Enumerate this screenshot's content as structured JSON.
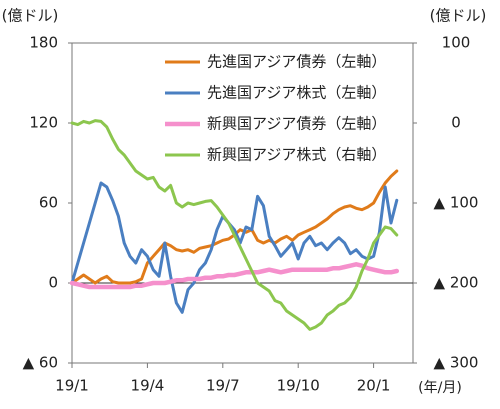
{
  "chart_data": {
    "type": "line",
    "y_label": "(億ドル)",
    "y2_label": "(億ドル)",
    "x_label": "(年/月)",
    "categories": [
      "19/1",
      null,
      null,
      null,
      null,
      null,
      null,
      null,
      null,
      null,
      null,
      null,
      null,
      "19/4",
      null,
      null,
      null,
      null,
      null,
      null,
      null,
      null,
      null,
      null,
      null,
      null,
      "19/7",
      null,
      null,
      null,
      null,
      null,
      null,
      null,
      null,
      null,
      null,
      null,
      null,
      "19/10",
      null,
      null,
      null,
      null,
      null,
      null,
      null,
      null,
      null,
      null,
      null,
      null,
      "20/1",
      null,
      null,
      null,
      null
    ],
    "ylim": [
      -60,
      180
    ],
    "yticks": [
      {
        "value": -60,
        "label": "▲ 60"
      },
      0,
      60,
      120,
      180
    ],
    "y2lim": [
      -300,
      100
    ],
    "y2ticks": [
      {
        "value": -300,
        "label": "▲ 300"
      },
      {
        "value": -200,
        "label": "▲ 200"
      },
      {
        "value": -100,
        "label": "▲ 100"
      },
      0,
      100
    ],
    "legend": "upper right",
    "series": [
      {
        "name": "先進国アジア債券（左軸）",
        "color": "#e07b1a",
        "values": [
          0,
          3,
          6,
          3,
          0,
          3,
          5,
          1,
          0,
          0,
          0,
          1,
          3,
          15,
          20,
          25,
          30,
          28,
          25,
          24,
          25,
          23,
          26,
          27,
          28,
          30,
          32,
          33,
          36,
          40,
          38,
          40,
          32,
          30,
          32,
          30,
          33,
          35,
          32,
          36,
          38,
          40,
          42,
          45,
          48,
          52,
          55,
          57,
          58,
          56,
          55,
          57,
          60,
          68,
          75,
          80,
          84
        ]
      },
      {
        "name": "先進国アジア株式（左軸）",
        "color": "#4a7fc1",
        "values": [
          0,
          15,
          30,
          45,
          60,
          75,
          72,
          62,
          50,
          30,
          20,
          15,
          25,
          20,
          10,
          5,
          30,
          5,
          -15,
          -22,
          -5,
          0,
          10,
          15,
          25,
          40,
          50,
          45,
          40,
          30,
          42,
          40,
          65,
          58,
          35,
          28,
          20,
          25,
          30,
          18,
          30,
          35,
          28,
          30,
          25,
          30,
          34,
          30,
          22,
          25,
          20,
          18,
          20,
          38,
          72,
          45,
          62
        ]
      },
      {
        "name": "新興国アジア債券（左軸）",
        "color": "#f590cc",
        "values": [
          0,
          -1,
          -2,
          -3,
          -3,
          -3,
          -3,
          -3,
          -3,
          -3,
          -3,
          -2,
          -2,
          -1,
          0,
          0,
          0,
          1,
          2,
          2,
          3,
          3,
          3,
          4,
          4,
          5,
          5,
          6,
          6,
          7,
          8,
          8,
          8,
          9,
          10,
          9,
          8,
          9,
          10,
          10,
          10,
          10,
          10,
          10,
          10,
          11,
          11,
          12,
          13,
          14,
          13,
          11,
          10,
          9,
          8,
          8,
          9
        ]
      },
      {
        "name": "新興国アジア株式（右軸）",
        "color": "#8cc64e",
        "axis": "y2",
        "values": [
          0,
          -2,
          2,
          0,
          3,
          2,
          -5,
          -20,
          -33,
          -40,
          -50,
          -60,
          -65,
          -70,
          -68,
          -80,
          -85,
          -78,
          -100,
          -105,
          -100,
          -102,
          -100,
          -98,
          -97,
          -105,
          -115,
          -125,
          -140,
          -155,
          -170,
          -185,
          -200,
          -205,
          -210,
          -222,
          -225,
          -235,
          -240,
          -245,
          -250,
          -258,
          -255,
          -250,
          -240,
          -235,
          -228,
          -225,
          -218,
          -205,
          -185,
          -170,
          -150,
          -140,
          -130,
          -132,
          -140
        ]
      }
    ]
  }
}
